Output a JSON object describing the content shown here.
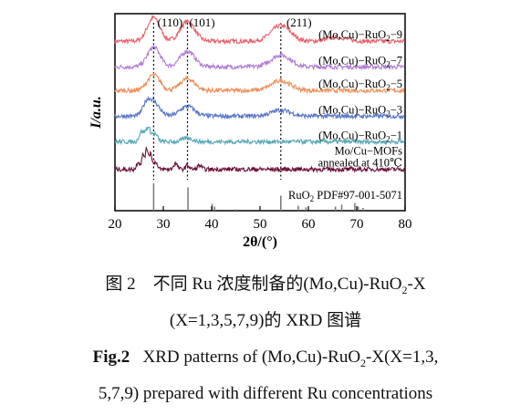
{
  "chart_data": {
    "type": "line",
    "xlabel_text": "2θ/(°)",
    "ylabel_text": "I/a.u.",
    "xlim": [
      20,
      80
    ],
    "xticks": [
      20,
      30,
      40,
      50,
      60,
      70,
      80
    ],
    "peak_labels": [
      {
        "text": "(110)",
        "x": 28.0
      },
      {
        "text": "(101)",
        "x": 35.0
      },
      {
        "text": "(211)",
        "x": 54.3
      }
    ],
    "series": [
      {
        "name": "(Mo,Cu)-RuO2-9",
        "label_main": "(Mo,Cu)−RuO",
        "label_sub": "2",
        "label_tail": "−9",
        "color": "#e8616b",
        "offset": 0.86,
        "peaks": [
          [
            28.0,
            0.12,
            1.3
          ],
          [
            35.0,
            0.1,
            1.5
          ],
          [
            54.3,
            0.08,
            2.0
          ],
          [
            66.0,
            0.02,
            2.0
          ]
        ]
      },
      {
        "name": "(Mo,Cu)-RuO2-7",
        "label_main": "(Mo,Cu)−RuO",
        "label_sub": "2",
        "label_tail": "−7",
        "color": "#b07ad4",
        "offset": 0.73,
        "peaks": [
          [
            28.0,
            0.1,
            1.3
          ],
          [
            35.0,
            0.08,
            1.5
          ],
          [
            54.3,
            0.06,
            2.0
          ]
        ]
      },
      {
        "name": "(Mo,Cu)-RuO2-5",
        "label_main": "(Mo,Cu)−RuO",
        "label_sub": "2",
        "label_tail": "−5",
        "color": "#f0905a",
        "offset": 0.61,
        "peaks": [
          [
            28.0,
            0.08,
            1.3
          ],
          [
            35.0,
            0.06,
            1.5
          ],
          [
            54.3,
            0.05,
            2.0
          ]
        ]
      },
      {
        "name": "(Mo,Cu)-RuO2-3",
        "label_main": "(Mo,Cu)−RuO",
        "label_sub": "2",
        "label_tail": "−3",
        "color": "#5876c8",
        "offset": 0.48,
        "peaks": [
          [
            26.5,
            0.05,
            0.8
          ],
          [
            28.0,
            0.07,
            1.2
          ],
          [
            35.0,
            0.05,
            1.5
          ],
          [
            54.3,
            0.03,
            2.0
          ]
        ]
      },
      {
        "name": "(Mo,Cu)-RuO2-1",
        "label_main": "(Mo,Cu)−RuO",
        "label_sub": "2",
        "label_tail": "−1",
        "color": "#5aa8b8",
        "offset": 0.35,
        "peaks": [
          [
            25.5,
            0.05,
            0.5
          ],
          [
            26.8,
            0.07,
            0.5
          ],
          [
            28.2,
            0.04,
            0.6
          ],
          [
            35.0,
            0.02,
            1.0
          ]
        ]
      },
      {
        "name": "Mo/Cu-MOFs annealed at 410 ℃",
        "label_main": "Mo/Cu−MOFs",
        "label_line2": "annealed at 410℃",
        "color": "#6b0f38",
        "offset": 0.21,
        "peaks": [
          [
            24.8,
            0.04,
            0.3
          ],
          [
            25.8,
            0.07,
            0.3
          ],
          [
            26.6,
            0.1,
            0.3
          ],
          [
            27.4,
            0.08,
            0.3
          ],
          [
            28.4,
            0.04,
            0.3
          ],
          [
            32.5,
            0.03,
            0.4
          ],
          [
            35.0,
            0.02,
            0.4
          ],
          [
            37.5,
            0.02,
            0.4
          ]
        ]
      }
    ],
    "reference": {
      "label_main": "RuO",
      "label_sub": "2",
      "label_tail": " PDF#97-001-5071",
      "lines": [
        [
          28.0,
          1.0
        ],
        [
          35.1,
          0.85
        ],
        [
          40.1,
          0.25
        ],
        [
          40.6,
          0.15
        ],
        [
          44.9,
          0.05
        ],
        [
          54.3,
          0.55
        ],
        [
          57.9,
          0.18
        ],
        [
          59.5,
          0.12
        ],
        [
          65.6,
          0.15
        ],
        [
          66.9,
          0.22
        ],
        [
          69.6,
          0.28
        ],
        [
          70.3,
          0.15
        ],
        [
          71.3,
          0.1
        ]
      ]
    }
  },
  "caption": {
    "cn_line1": "图 2　不同 Ru 浓度制备的(Mo,Cu)-RuO",
    "cn_line1_sub": "2",
    "cn_line1_tail": "-X",
    "cn_line2": "(X=1,3,5,7,9)的 XRD 图谱",
    "en_line1_bold": "Fig.2",
    "en_line1": "   XRD patterns of (Mo,Cu)-RuO",
    "en_line1_sub": "2",
    "en_line1_tail": "-X(X=1,3,",
    "en_line2": "5,7,9) prepared with different Ru concentrations"
  }
}
